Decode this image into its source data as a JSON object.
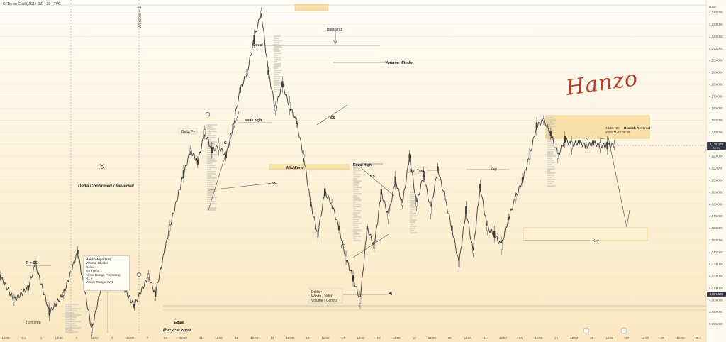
{
  "header": {
    "symbol": "CFDs on Gold (US$ / OZ) · 30 · TVC"
  },
  "currency": "USD",
  "window_label": "Window = 1",
  "signature": "Hanzo",
  "indicator_box": {
    "title": "Hanzo Algorism",
    "lines": [
      "Volume Cluster",
      "Delta +",
      "SS Trend",
      "Alpha Range Protecting",
      "H1 +",
      "Visible Range LVN"
    ]
  },
  "annotations": {
    "delta_confirmed": "Delta Confirmed / Reversal",
    "recycle_zone": "Recycle zone",
    "turn_area": "Turn area",
    "p_ss": "P = SS",
    "equal_bottom": "Equal",
    "delta_p": "Delta P=",
    "weak_high": "weak high",
    "ss_left": "SS",
    "c_mark": "C",
    "equal_top": "Equal",
    "bulls_trap": "Bulls Trap",
    "volume_windo": "Volume Windo",
    "ss_mid": "SS",
    "mid_zone": "Mid Zone",
    "equal_high": "Equal High",
    "ss_right": "SS",
    "delta_note_1": "Delta +",
    "delta_note_2": "Windo / Valid",
    "delta_note_3": "Volume / Control",
    "buy_trap": "Buy Trap",
    "key_top": "Key",
    "key_right": "Key",
    "bearish_reversal": "Bearish Reversal",
    "tooltip_price": "4,134.780",
    "tooltip_date": "2025-11-28 08:30"
  },
  "price_tags": {
    "current": "4,129.160",
    "current_sub": "27:51",
    "lower": "4,007.540"
  },
  "colors": {
    "candle": "#3a3a3a",
    "zone_fill": "#f5d48a",
    "zone_stroke": "#d6a64a",
    "signature": "#c0392b",
    "tag_bg": "#363a45"
  },
  "chart_data": {
    "type": "line",
    "title": "CFDs on Gold (US$ / OZ) · 30 · TVC",
    "xlabel": "",
    "ylabel": "",
    "ylim": [
      3972,
      4248
    ],
    "y_ticks": [
      "4,240.000",
      "4,230.000",
      "4,220.000",
      "4,210.000",
      "4,200.000",
      "4,190.000",
      "4,180.000",
      "4,170.000",
      "4,160.000",
      "4,150.000",
      "4,140.000",
      "4,130.000",
      "4,120.000",
      "4,110.000",
      "4,100.000",
      "4,090.000",
      "4,080.000",
      "4,070.000",
      "4,060.000",
      "4,050.000",
      "4,040.000",
      "4,030.000",
      "4,020.000",
      "4,010.000",
      "4,000.000",
      "3,990.000",
      "3,980.000"
    ],
    "y_tick_values": [
      4240,
      4230,
      4220,
      4210,
      4200,
      4190,
      4180,
      4170,
      4160,
      4150,
      4140,
      4130,
      4120,
      4110,
      4100,
      4090,
      4080,
      4070,
      4060,
      4050,
      4040,
      4030,
      4020,
      4010,
      4000,
      3990,
      3980
    ],
    "x_ticks": [
      "12:00",
      "Nov",
      "4",
      "12:00",
      "5",
      "12:00",
      "6",
      "12:00",
      "7",
      "10",
      "12:00",
      "11",
      "12:00",
      "12",
      "12:00",
      "13",
      "12:00",
      "14",
      "12:00",
      "17",
      "12:00",
      "18",
      "12:00",
      "19",
      "12:00",
      "20",
      "12:00",
      "21",
      "12:00",
      "24",
      "12:00",
      "25",
      "12:00",
      "26",
      "12:00",
      "27",
      "12:00",
      "28",
      "12:00",
      "Dec"
    ],
    "x_range": [
      0,
      100
    ],
    "series": [
      {
        "x": [
          0,
          2,
          4,
          5,
          7,
          9,
          11,
          13,
          15,
          17,
          19,
          21,
          22,
          24,
          26,
          27,
          28,
          29,
          30,
          31,
          32,
          33,
          34,
          35,
          36,
          37,
          38,
          39,
          40,
          41,
          42,
          43,
          44,
          45,
          46,
          47,
          48,
          49,
          50,
          51,
          52,
          53,
          54,
          55,
          56,
          57,
          58,
          59,
          60,
          61,
          62,
          63,
          64,
          65,
          66,
          67,
          68,
          69,
          70,
          71,
          72,
          73,
          74,
          75,
          76,
          77,
          78,
          79,
          80,
          81,
          82,
          83,
          84,
          85,
          86,
          87
        ],
        "values": [
          4020,
          4000,
          4010,
          4030,
          3990,
          4005,
          4040,
          3975,
          4030,
          4015,
          3995,
          4020,
          4005,
          4060,
          4105,
          4125,
          4115,
          4140,
          4125,
          4128,
          4120,
          4145,
          4175,
          4190,
          4218,
          4240,
          4190,
          4160,
          4180,
          4162,
          4148,
          4120,
          4080,
          4055,
          4090,
          4080,
          4060,
          4035,
          4018,
          4000,
          4060,
          4045,
          4090,
          4070,
          4100,
          4080,
          4120,
          4080,
          4105,
          4075,
          4110,
          4085,
          4060,
          4030,
          4075,
          4040,
          4095,
          4060,
          4055,
          4045,
          4068,
          4085,
          4100,
          4120,
          4145,
          4150,
          4139,
          4120,
          4134,
          4129,
          4132,
          4128,
          4131,
          4129,
          4129,
          4129
        ]
      }
    ],
    "grid": true,
    "legend": "none"
  }
}
